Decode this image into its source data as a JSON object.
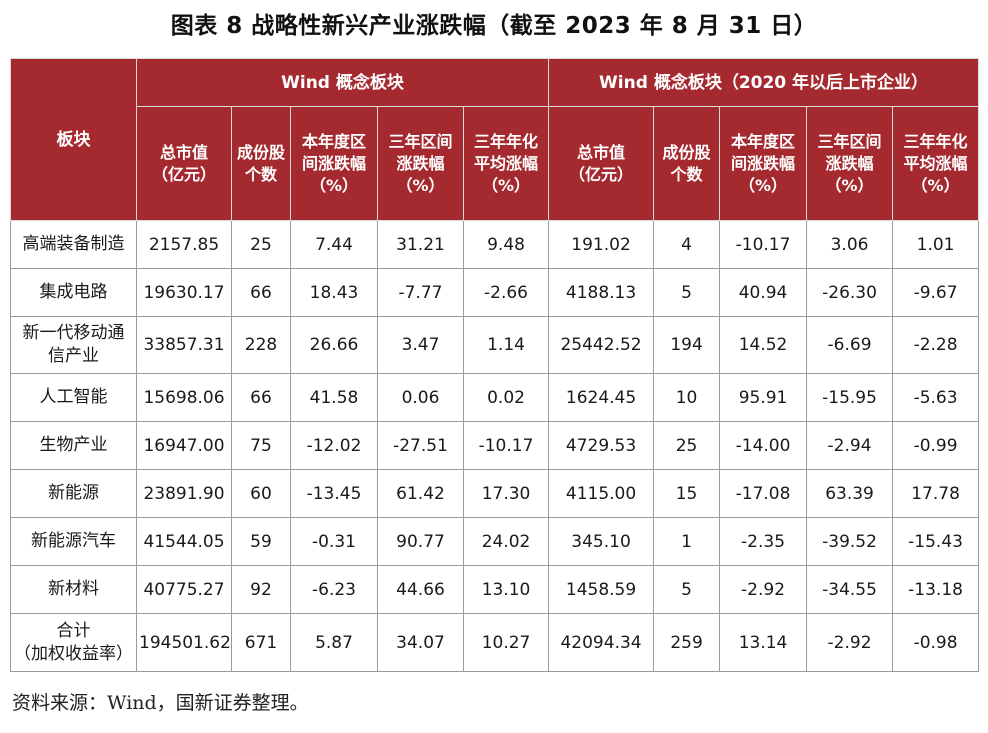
{
  "title": "图表 8  战略性新兴产业涨跌幅（截至 2023 年 8 月 31 日）",
  "header": {
    "block_label": "板块",
    "group1": "Wind 概念板块",
    "group2": "Wind 概念板块（2020 年以后上市企业）",
    "columns": [
      "总市值\n（亿元）",
      "成份股\n个数",
      "本年度区\n间涨跌幅\n（%）",
      "三年区间\n涨跌幅\n（%）",
      "三年年化\n平均涨幅\n（%）"
    ]
  },
  "rows": [
    {
      "name": "高端装备制造",
      "cells": [
        "2157.85",
        "25",
        "7.44",
        "31.21",
        "9.48",
        "191.02",
        "4",
        "-10.17",
        "3.06",
        "1.01"
      ]
    },
    {
      "name": "集成电路",
      "cells": [
        "19630.17",
        "66",
        "18.43",
        "-7.77",
        "-2.66",
        "4188.13",
        "5",
        "40.94",
        "-26.30",
        "-9.67"
      ]
    },
    {
      "name": "新一代移动通\n信产业",
      "cells": [
        "33857.31",
        "228",
        "26.66",
        "3.47",
        "1.14",
        "25442.52",
        "194",
        "14.52",
        "-6.69",
        "-2.28"
      ]
    },
    {
      "name": "人工智能",
      "cells": [
        "15698.06",
        "66",
        "41.58",
        "0.06",
        "0.02",
        "1624.45",
        "10",
        "95.91",
        "-15.95",
        "-5.63"
      ]
    },
    {
      "name": "生物产业",
      "cells": [
        "16947.00",
        "75",
        "-12.02",
        "-27.51",
        "-10.17",
        "4729.53",
        "25",
        "-14.00",
        "-2.94",
        "-0.99"
      ]
    },
    {
      "name": "新能源",
      "cells": [
        "23891.90",
        "60",
        "-13.45",
        "61.42",
        "17.30",
        "4115.00",
        "15",
        "-17.08",
        "63.39",
        "17.78"
      ]
    },
    {
      "name": "新能源汽车",
      "cells": [
        "41544.05",
        "59",
        "-0.31",
        "90.77",
        "24.02",
        "345.10",
        "1",
        "-2.35",
        "-39.52",
        "-15.43"
      ]
    },
    {
      "name": "新材料",
      "cells": [
        "40775.27",
        "92",
        "-6.23",
        "44.66",
        "13.10",
        "1458.59",
        "5",
        "-2.92",
        "-34.55",
        "-13.18"
      ]
    },
    {
      "name": "合计\n（加权收益率）",
      "cells": [
        "194501.62",
        "671",
        "5.87",
        "34.07",
        "10.27",
        "42094.34",
        "259",
        "13.14",
        "-2.92",
        "-0.98"
      ]
    }
  ],
  "source": "资料来源：Wind，国新证券整理。",
  "colors": {
    "header_bg": "#a52a30",
    "header_text": "#ffffff",
    "border": "#9a9a9a"
  }
}
